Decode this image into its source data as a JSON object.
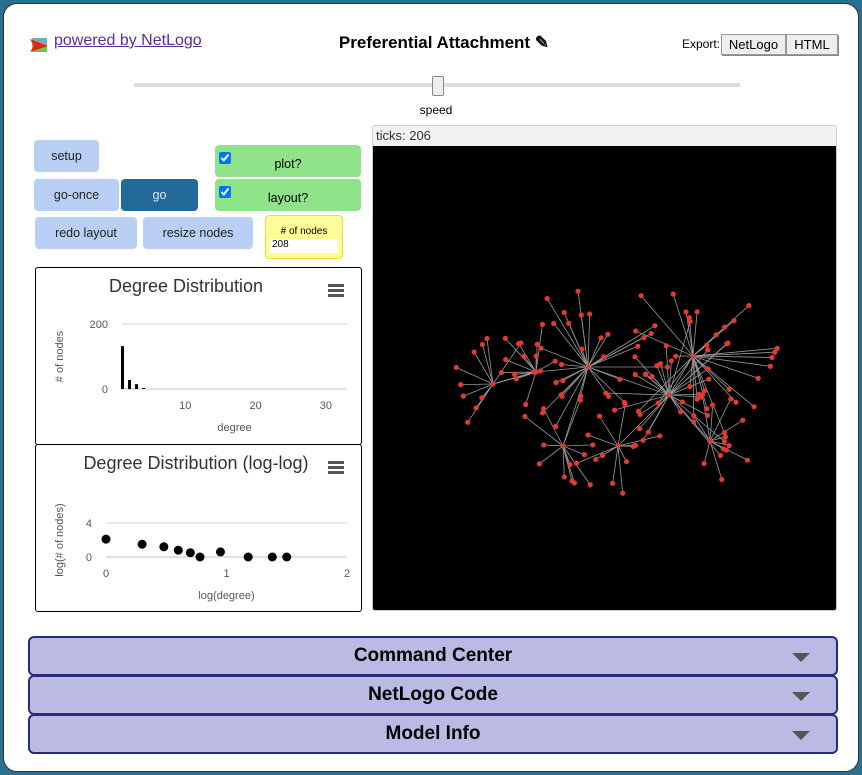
{
  "header": {
    "powered_by": "powered by NetLogo",
    "title": "Preferential Attachment",
    "export_label": "Export:",
    "export_netlogo": "NetLogo",
    "export_html": "HTML"
  },
  "speed": {
    "label": "speed",
    "value": 0.5
  },
  "buttons": {
    "setup": "setup",
    "go_once": "go-once",
    "go": "go",
    "redo_layout": "redo layout",
    "resize_nodes": "resize nodes"
  },
  "switches": {
    "plot": {
      "label": "plot?",
      "checked": true
    },
    "layout": {
      "label": "layout?",
      "checked": true
    }
  },
  "monitor": {
    "label": "# of nodes",
    "value": "208"
  },
  "world": {
    "ticks_label": "ticks: 206"
  },
  "chart_data": [
    {
      "type": "bar",
      "title": "Degree Distribution",
      "xlabel": "degree",
      "ylabel": "# of nodes",
      "x": [
        1,
        2,
        3,
        4
      ],
      "values": [
        132,
        28,
        15,
        3
      ],
      "xlim": [
        1,
        33
      ],
      "ylim": [
        0,
        200
      ],
      "xticks": [
        "10",
        "20",
        "30"
      ],
      "yticks": [
        "0",
        "200"
      ]
    },
    {
      "type": "scatter",
      "title": "Degree Distribution (log-log)",
      "xlabel": "log(degree)",
      "ylabel": "log(# of nodes)",
      "x": [
        0,
        0.3,
        0.48,
        0.6,
        0.7,
        0.78,
        0.95,
        1.18,
        1.38,
        1.5
      ],
      "y": [
        2.1,
        1.5,
        1.2,
        0.8,
        0.5,
        0,
        0.6,
        0,
        0,
        0
      ],
      "xlim": [
        0,
        2
      ],
      "ylim": [
        0,
        4
      ],
      "xticks": [
        "0",
        "1",
        "2"
      ],
      "yticks": [
        "0",
        "4"
      ]
    }
  ],
  "sections": [
    "Command Center",
    "NetLogo Code",
    "Model Info"
  ]
}
